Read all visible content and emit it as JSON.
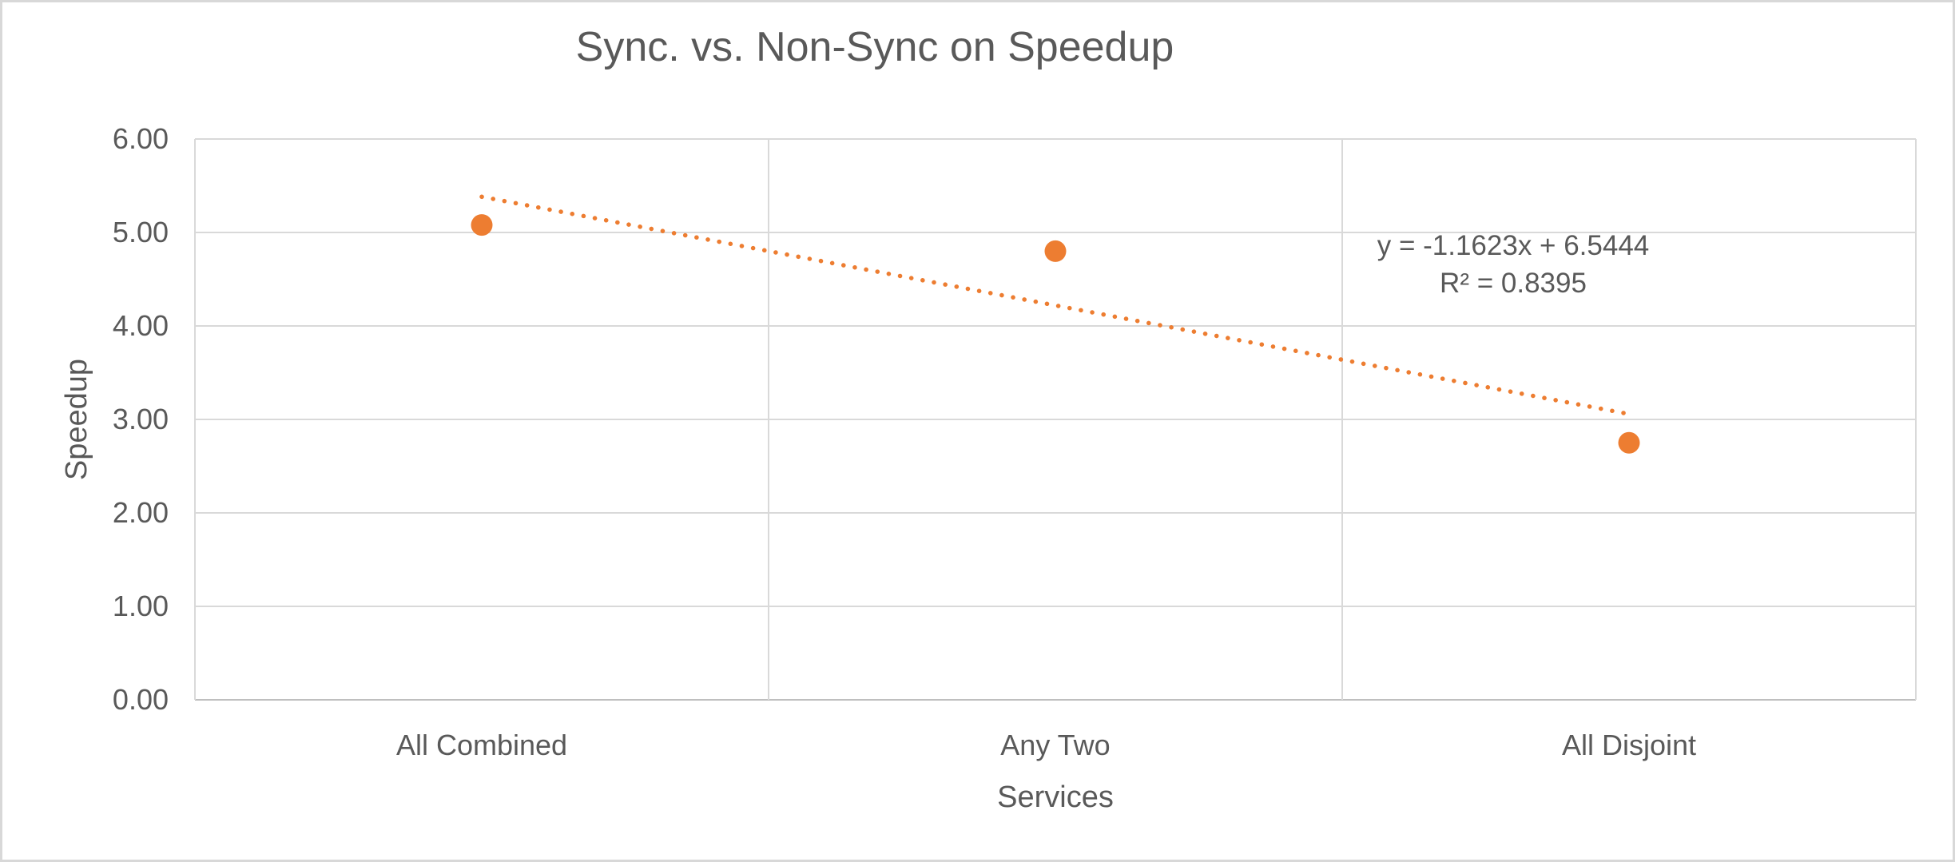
{
  "title": "Sync. vs. Non-Sync on Speedup",
  "colors": {
    "accent": "#ED7D31",
    "gridline": "#D9D9D9",
    "axis_line": "#BFBFBF",
    "text": "#595959",
    "frame_border": "#D8D8D8"
  },
  "y_axis": {
    "title": "Speedup",
    "tick_labels": [
      "6.00",
      "5.00",
      "4.00",
      "3.00",
      "2.00",
      "1.00",
      "0.00"
    ]
  },
  "x_axis": {
    "title": "Services",
    "category_labels": [
      "All Combined",
      "Any Two",
      "All Disjoint"
    ]
  },
  "annotation": {
    "equation": "y = -1.1623x + 6.5444",
    "r_squared": "R² = 0.8395"
  },
  "chart_data": {
    "type": "scatter",
    "title": "Sync. vs. Non-Sync on Speedup",
    "xlabel": "Services",
    "ylabel": "Speedup",
    "categories": [
      "All Combined",
      "Any Two",
      "All Disjoint"
    ],
    "x": [
      1,
      2,
      3
    ],
    "values": [
      5.08,
      4.8,
      2.75
    ],
    "xlim": [
      0.5,
      3.5
    ],
    "ylim": [
      0,
      6
    ],
    "x_major_unit": 1,
    "y_major_unit": 1,
    "grid": true,
    "legend": "none",
    "marker_color": "#ED7D31",
    "trendline": {
      "type": "linear",
      "style": "dotted",
      "color": "#ED7D31",
      "slope": -1.1623,
      "intercept": 6.5444,
      "r2": 0.8395,
      "x_start": 1,
      "x_end": 3
    }
  }
}
